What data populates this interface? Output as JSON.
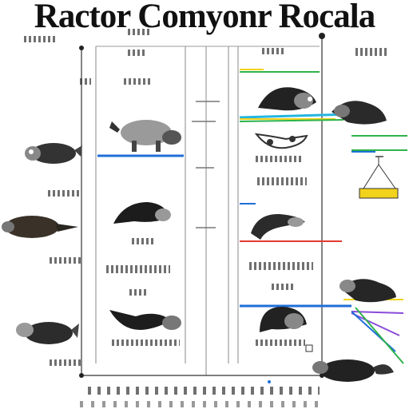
{
  "title": "Ractor Comyonr Rocala",
  "accent_colors": {
    "blue": "#1f6fd8",
    "green": "#2db34a",
    "yellow": "#f2d21b",
    "red": "#e23a2e",
    "purple": "#8a4bd8",
    "cyan": "#25b5e0"
  },
  "icons": [
    "raccoon-icon",
    "ferret-icon",
    "platypus-icon",
    "tool-icon"
  ]
}
